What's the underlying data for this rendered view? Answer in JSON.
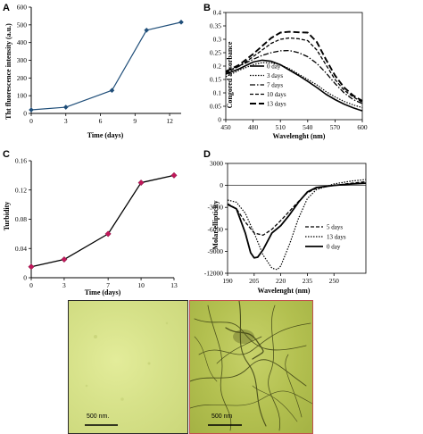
{
  "panels": {
    "A": {
      "letter": "A"
    },
    "B": {
      "letter": "B"
    },
    "C": {
      "letter": "C"
    },
    "D": {
      "letter": "D"
    }
  },
  "chart_data": [
    {
      "id": "A",
      "type": "line",
      "xlabel": "Time (days)",
      "ylabel": "Tht fluorescence intensity (a.u.)",
      "x_ticks": [
        0,
        3,
        6,
        9,
        12
      ],
      "y_ticks": [
        0,
        100,
        200,
        300,
        400,
        500,
        600
      ],
      "xlim": [
        0,
        13
      ],
      "ylim": [
        0,
        600
      ],
      "grid": false,
      "color": "#1f4e79",
      "series": [
        {
          "x": [
            0,
            3,
            7,
            10,
            13
          ],
          "y": [
            20,
            35,
            130,
            470,
            515
          ]
        }
      ]
    },
    {
      "id": "B",
      "type": "line",
      "xlabel": "Wavelenght (nm)",
      "ylabel": "Congored absorbance",
      "x_ticks": [
        450,
        480,
        510,
        540,
        570,
        600
      ],
      "y_ticks": [
        0,
        0.05,
        0.1,
        0.15,
        0.2,
        0.25,
        0.3,
        0.35,
        0.4
      ],
      "y_tick_labels": [
        "0",
        "0.05",
        "0.1",
        "0.15",
        "0.2",
        "0.25",
        "0.3",
        "0.35",
        "0.4"
      ],
      "xlim": [
        450,
        600
      ],
      "ylim": [
        0,
        0.4
      ],
      "grid": false,
      "legend_position": "right",
      "series": [
        {
          "name": "0 day",
          "dash": "",
          "width": 1.6,
          "x": [
            450,
            465,
            480,
            490,
            500,
            510,
            520,
            530,
            540,
            550,
            560,
            570,
            580,
            590,
            600
          ],
          "y": [
            0.17,
            0.19,
            0.215,
            0.222,
            0.218,
            0.205,
            0.185,
            0.165,
            0.143,
            0.12,
            0.095,
            0.075,
            0.058,
            0.044,
            0.033
          ]
        },
        {
          "name": "3 days",
          "dash": "1.5,1.5",
          "width": 1.2,
          "x": [
            450,
            465,
            480,
            490,
            500,
            510,
            520,
            530,
            540,
            550,
            560,
            570,
            580,
            590,
            600
          ],
          "y": [
            0.16,
            0.185,
            0.205,
            0.213,
            0.212,
            0.205,
            0.19,
            0.17,
            0.15,
            0.13,
            0.105,
            0.085,
            0.068,
            0.055,
            0.045
          ]
        },
        {
          "name": "7 days",
          "dash": "6,2,1.5,2",
          "width": 1.3,
          "x": [
            450,
            465,
            480,
            490,
            500,
            510,
            520,
            530,
            540,
            550,
            560,
            570,
            580,
            590,
            600
          ],
          "y": [
            0.18,
            0.2,
            0.225,
            0.24,
            0.25,
            0.257,
            0.258,
            0.25,
            0.235,
            0.21,
            0.175,
            0.135,
            0.1,
            0.075,
            0.06
          ]
        },
        {
          "name": "10 days",
          "dash": "4,2",
          "width": 1.3,
          "x": [
            450,
            465,
            480,
            490,
            500,
            510,
            520,
            530,
            540,
            550,
            560,
            570,
            580,
            590,
            600
          ],
          "y": [
            0.175,
            0.2,
            0.235,
            0.26,
            0.285,
            0.3,
            0.305,
            0.302,
            0.295,
            0.26,
            0.205,
            0.15,
            0.11,
            0.085,
            0.065
          ]
        },
        {
          "name": "13 days",
          "dash": "7,3",
          "width": 1.9,
          "x": [
            450,
            465,
            480,
            490,
            500,
            510,
            520,
            530,
            540,
            550,
            560,
            570,
            580,
            590,
            600
          ],
          "y": [
            0.18,
            0.205,
            0.245,
            0.275,
            0.305,
            0.325,
            0.328,
            0.326,
            0.325,
            0.29,
            0.225,
            0.165,
            0.12,
            0.09,
            0.07
          ]
        }
      ]
    },
    {
      "id": "C",
      "type": "line",
      "xlabel": "Time (days)",
      "ylabel": "Turbidity",
      "x_ticks": [
        0,
        3,
        7,
        10,
        13
      ],
      "y_ticks": [
        0,
        0.04,
        0.08,
        0.12,
        0.16
      ],
      "y_tick_labels": [
        "0",
        "0.04",
        "0.08",
        "0.12",
        "0.16"
      ],
      "xlim": [
        0,
        13
      ],
      "ylim": [
        0,
        0.16
      ],
      "grid": false,
      "line_color": "#000000",
      "marker_color": "#c2185b",
      "series": [
        {
          "x": [
            0,
            3,
            7,
            10,
            13
          ],
          "y": [
            0.015,
            0.025,
            0.06,
            0.13,
            0.14
          ]
        }
      ]
    },
    {
      "id": "D",
      "type": "line",
      "xlabel": "Wavelenght (nm)",
      "ylabel": "Molar ellipticity",
      "x_ticks": [
        190,
        205,
        220,
        235,
        250
      ],
      "y_ticks": [
        -12000,
        -9000,
        -6000,
        -3000,
        0,
        3000
      ],
      "xlim": [
        190,
        268
      ],
      "ylim": [
        -12000,
        3000
      ],
      "grid": false,
      "legend_position": "bottom-right",
      "series": [
        {
          "name": "5 days",
          "dash": "4,2",
          "width": 1.3,
          "x": [
            190,
            195,
            200,
            205,
            210,
            215,
            220,
            225,
            230,
            235,
            240,
            250,
            260,
            268
          ],
          "y": [
            -2500,
            -3200,
            -5000,
            -6500,
            -6800,
            -6000,
            -4800,
            -3500,
            -2200,
            -1000,
            -400,
            0,
            300,
            500
          ]
        },
        {
          "name": "13 days",
          "dash": "1.5,1.5",
          "width": 1.2,
          "x": [
            190,
            195,
            200,
            205,
            210,
            215,
            218,
            220,
            225,
            230,
            235,
            240,
            250,
            260,
            268
          ],
          "y": [
            -2000,
            -2300,
            -3800,
            -6500,
            -9500,
            -11300,
            -11500,
            -11000,
            -8000,
            -4500,
            -1800,
            -600,
            200,
            600,
            800
          ]
        },
        {
          "name": "0 day",
          "dash": "",
          "width": 1.8,
          "x": [
            190,
            195,
            200,
            203,
            205,
            207,
            210,
            215,
            220,
            225,
            230,
            235,
            240,
            250,
            260,
            268
          ],
          "y": [
            -2600,
            -3200,
            -6500,
            -9200,
            -9900,
            -9800,
            -8800,
            -6500,
            -5500,
            -4000,
            -2300,
            -900,
            -300,
            0,
            200,
            300
          ]
        }
      ]
    }
  ],
  "micrographs": {
    "left": {
      "scale_label": "500 nm."
    },
    "right": {
      "scale_label": "500 nm"
    }
  }
}
